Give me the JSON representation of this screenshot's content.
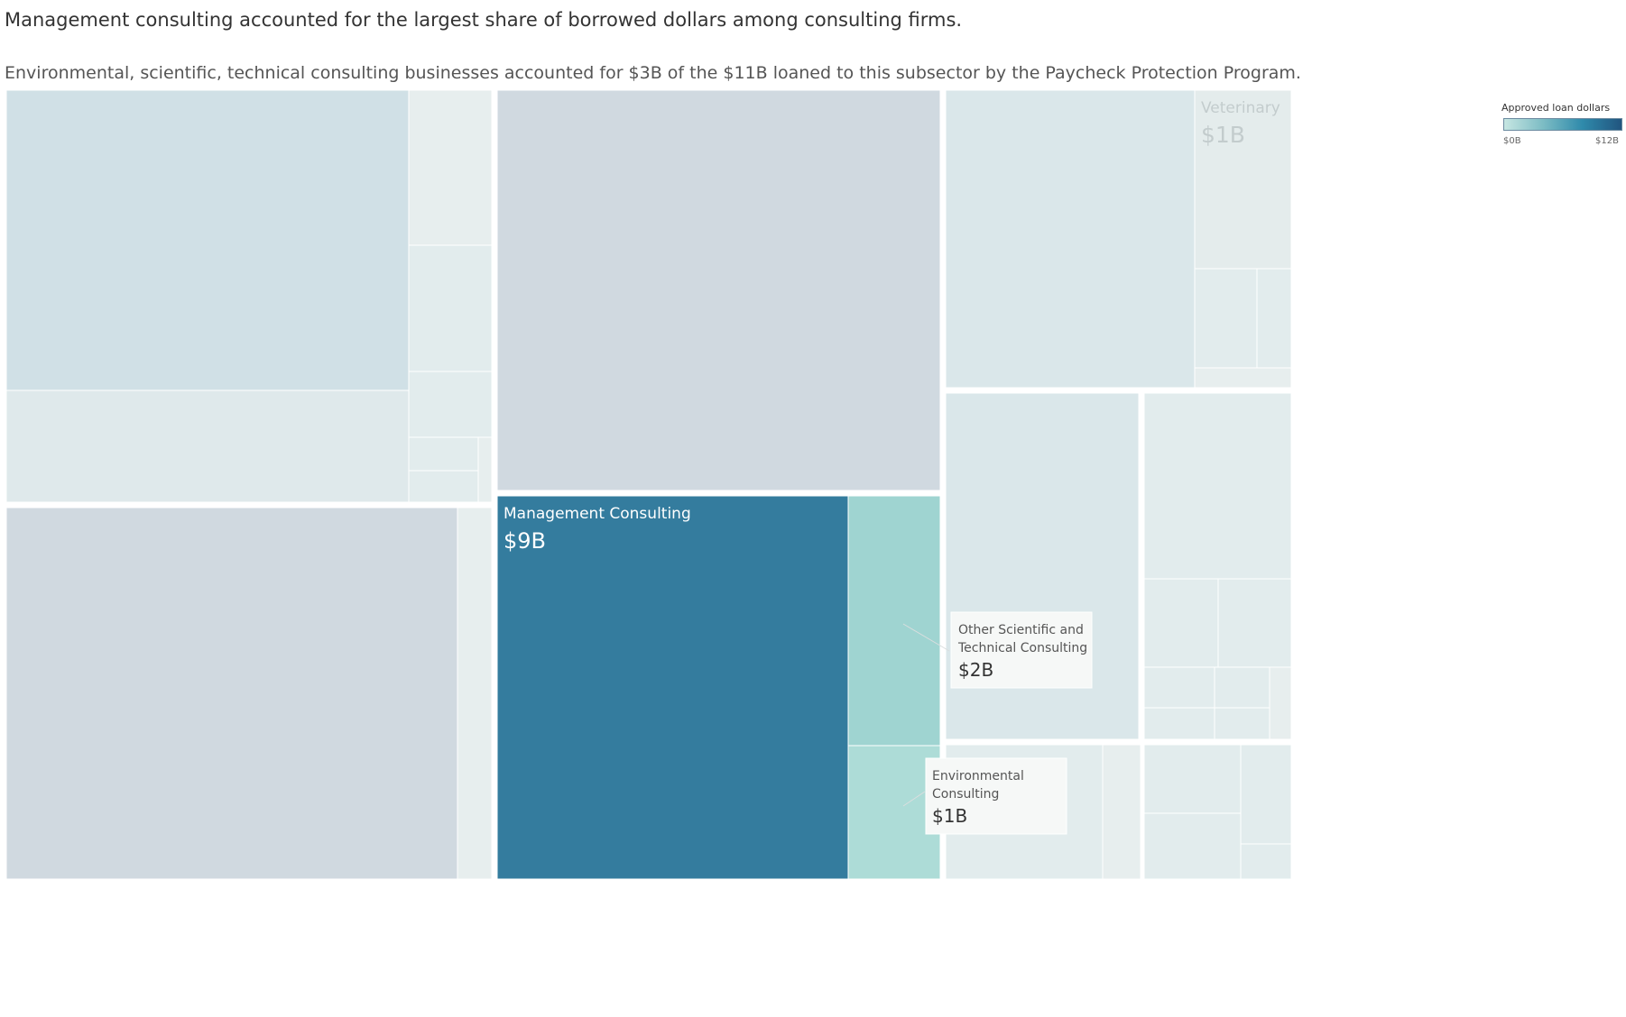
{
  "header": {
    "title": "Management consulting accounted for the largest share of borrowed dollars among consulting firms.",
    "subtitle": "Environmental, scientific, technical consulting businesses accounted for $3B of the $11B loaned to this subsector by the Paycheck Protection Program."
  },
  "legend": {
    "title": "Approved loan dollars",
    "min_label": "$0B",
    "max_label": "$12B",
    "colors": [
      "#c6e6e2",
      "#7cbcc4",
      "#2f8aab",
      "#21557f"
    ]
  },
  "chart_data": {
    "type": "treemap",
    "color_scale": {
      "min": 0,
      "max": 12,
      "unit": "$B"
    },
    "highlighted": [
      {
        "name": "Management Consulting",
        "value": 9,
        "label": "$9B",
        "color": "#347c9e",
        "text_color": "#ffffff"
      },
      {
        "name": "Other Scientific and Technical Consulting",
        "value": 2,
        "label": "$2B",
        "color": "#9fd4d1",
        "callout": true
      },
      {
        "name": "Environmental Consulting",
        "value": 1,
        "label": "$1B",
        "color": "#addcd7",
        "callout": true
      },
      {
        "name": "Veterinary",
        "value": 1,
        "label": "$1B",
        "color": "#e4ecec",
        "text_color": "#c3cccd",
        "faded": true
      }
    ],
    "colors": {
      "faded_dark": "#d0d9e0",
      "faded_mid": "#d0e0e6",
      "faded_blue": "#dae7ea",
      "faded_light": "#e2eced",
      "faded_pale": "#e7eeee",
      "callout_bg": "#f6f8f7"
    }
  }
}
